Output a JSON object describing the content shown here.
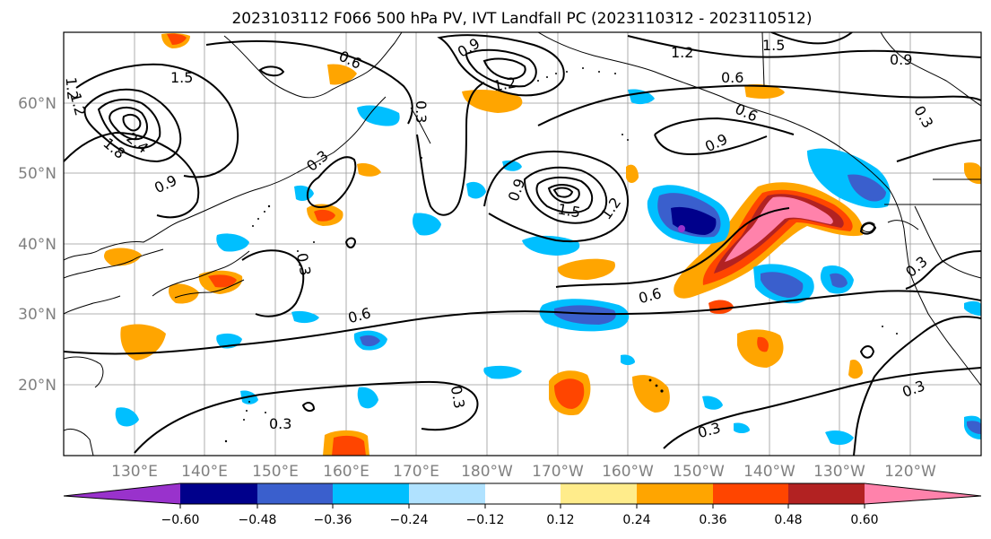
{
  "title": "2023103112 F066 500 hPa PV, IVT Landfall PC (2023110312 - 2023110512)",
  "lat_labels": [
    "60°N",
    "50°N",
    "40°N",
    "30°N",
    "20°N"
  ],
  "lon_labels": [
    "130°E",
    "140°E",
    "150°E",
    "160°E",
    "170°E",
    "180°W",
    "170°W",
    "160°W",
    "150°W",
    "140°W",
    "130°W",
    "120°W"
  ],
  "colorbar": {
    "colors": [
      "#9932cc",
      "#00008b",
      "#3a5fcd",
      "#00bfff",
      "#b0e2ff",
      "#ffffff",
      "#ffec8b",
      "#ffa500",
      "#ff4500",
      "#b22222",
      "#ff82ab"
    ],
    "tick_labels": [
      "−0.60",
      "−0.48",
      "−0.36",
      "−0.24",
      "−0.12",
      "0.12",
      "0.24",
      "0.36",
      "0.48",
      "0.60"
    ]
  },
  "contour_labels": [
    "1.2",
    "1.5",
    "0.6",
    "0.9",
    "1.2",
    "1.2",
    "1.5",
    "0.9",
    "0.6",
    "0.6",
    "0.9",
    "0.3",
    "1.2",
    "2.4",
    "1.8",
    "0.9",
    "0.3",
    "0.3",
    "0.9",
    "1.5",
    "1.2",
    "0.3",
    "0.6",
    "0.6",
    "0.3",
    "0.3",
    "0.3",
    "0.3",
    "0.3"
  ]
}
